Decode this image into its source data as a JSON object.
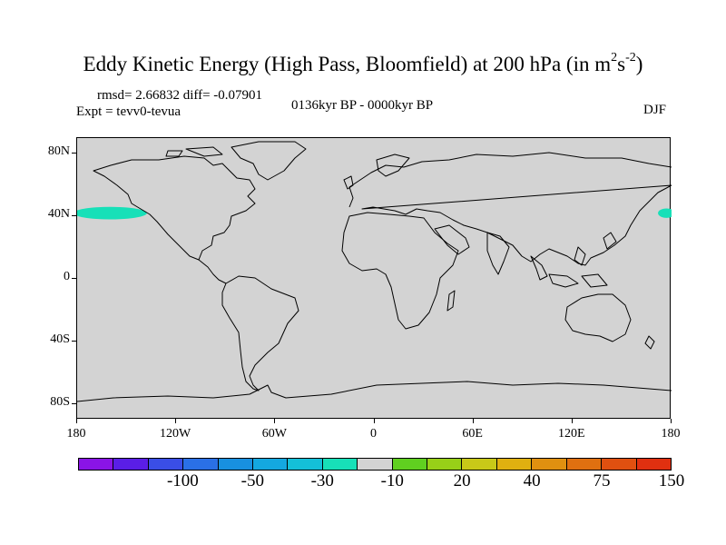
{
  "title_main": "Eddy Kinetic Energy (High Pass, Bloomfield) at 200 hPa (in m",
  "title_sup1": "2",
  "title_mid": "s",
  "title_sup2": "-2",
  "title_end": ")",
  "stats": "rmsd= 2.66832 diff= -0.07901",
  "experiment": "Expt = tevv0-tevua",
  "period": "0136kyr BP - 0000kyr BP",
  "season": "DJF",
  "map": {
    "projection": "cylindrical-equidistant",
    "lon_range": [
      -180,
      180
    ],
    "lat_range": [
      -90,
      90
    ],
    "background_color": "#d3d3d3",
    "lat_ticks": [
      {
        "value": 80,
        "label": "80N"
      },
      {
        "value": 40,
        "label": "40N"
      },
      {
        "value": 0,
        "label": "0"
      },
      {
        "value": -40,
        "label": "40S"
      },
      {
        "value": -80,
        "label": "80S"
      }
    ],
    "lon_ticks": [
      {
        "value": -180,
        "label": "180"
      },
      {
        "value": -120,
        "label": "120W"
      },
      {
        "value": -60,
        "label": "60W"
      },
      {
        "value": 0,
        "label": "0"
      },
      {
        "value": 60,
        "label": "60E"
      },
      {
        "value": 120,
        "label": "120E"
      },
      {
        "value": 180,
        "label": "180"
      }
    ],
    "anomaly_patches": [
      {
        "lon_min": -180,
        "lon_max": -140,
        "lat_center": 42,
        "lat_half": 4,
        "color": "#17e0b8"
      },
      {
        "lon_min": 174,
        "lon_max": 180,
        "lat_center": 42,
        "lat_half": 3,
        "color": "#17e0b8"
      }
    ]
  },
  "colorbar": {
    "colors": [
      "#8a14e6",
      "#5a1ee6",
      "#3a4ee6",
      "#2a70e6",
      "#1890e0",
      "#14a8e0",
      "#14c0d8",
      "#17e0b8",
      "#d3d3d3",
      "#60d020",
      "#98d018",
      "#c8c818",
      "#e0b010",
      "#e09010",
      "#e07010",
      "#e05010",
      "#e03010"
    ],
    "labels": [
      {
        "label": "-100",
        "boundary": 2
      },
      {
        "label": "-50",
        "boundary": 4
      },
      {
        "label": "-30",
        "boundary": 6
      },
      {
        "label": "-10",
        "boundary": 8
      },
      {
        "label": "20",
        "boundary": 10
      },
      {
        "label": "40",
        "boundary": 12
      },
      {
        "label": "75",
        "boundary": 14
      },
      {
        "label": "150",
        "boundary": 16
      }
    ]
  }
}
